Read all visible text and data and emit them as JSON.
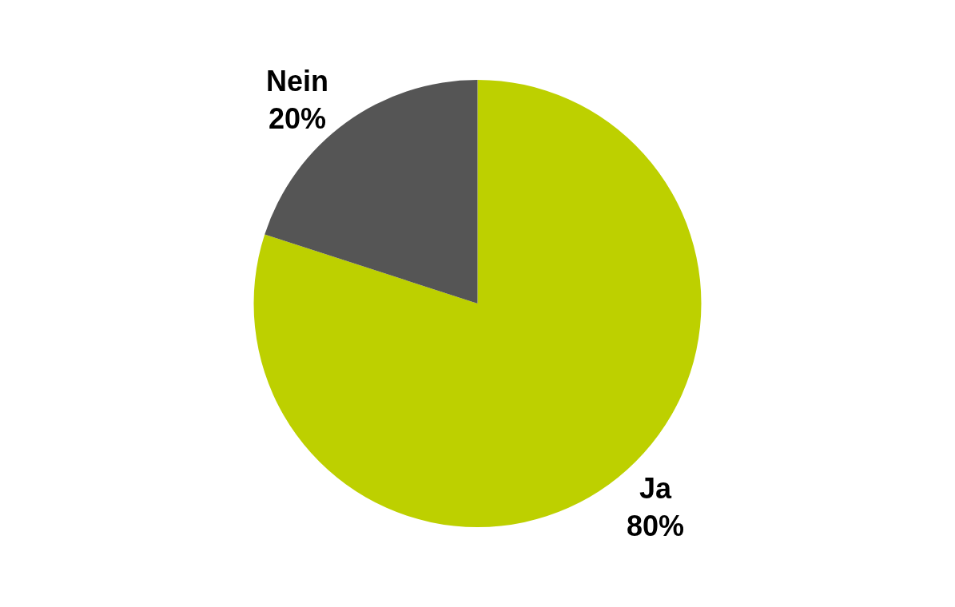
{
  "chart_data": {
    "type": "pie",
    "categories": [
      "Ja",
      "Nein"
    ],
    "values": [
      80,
      20
    ],
    "value_labels": [
      "80%",
      "20%"
    ],
    "colors": [
      "#bdd000",
      "#555555"
    ],
    "legend": false
  }
}
